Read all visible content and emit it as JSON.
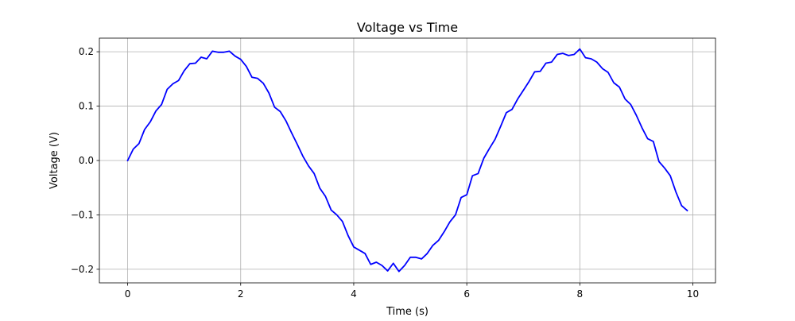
{
  "chart_data": {
    "type": "line",
    "title": "Voltage vs Time",
    "xlabel": "Time (s)",
    "ylabel": "Voltage (V)",
    "xlim": [
      -0.5,
      10.4
    ],
    "ylim": [
      -0.225,
      0.225
    ],
    "xticks": [
      0,
      2,
      4,
      6,
      8,
      10
    ],
    "xtick_labels": [
      "0",
      "2",
      "4",
      "6",
      "8",
      "10"
    ],
    "yticks": [
      -0.2,
      -0.1,
      0.0,
      0.1,
      0.2
    ],
    "ytick_labels": [
      "−0.2",
      "−0.1",
      "0.0",
      "0.1",
      "0.2"
    ],
    "grid": true,
    "series": [
      {
        "color": "#0000ff",
        "x": [
          0.0,
          0.1,
          0.2,
          0.3,
          0.4,
          0.5,
          0.6,
          0.7,
          0.8,
          0.9,
          1.0,
          1.1,
          1.2,
          1.3,
          1.4,
          1.5,
          1.6,
          1.7,
          1.8,
          1.9,
          2.0,
          2.1,
          2.2,
          2.3,
          2.4,
          2.5,
          2.6,
          2.7,
          2.8,
          2.9,
          3.0,
          3.1,
          3.2,
          3.3,
          3.4,
          3.5,
          3.6,
          3.7,
          3.8,
          3.9,
          4.0,
          4.1,
          4.2,
          4.3,
          4.4,
          4.5,
          4.6,
          4.7,
          4.8,
          4.9,
          5.0,
          5.1,
          5.2,
          5.3,
          5.4,
          5.5,
          5.6,
          5.7,
          5.8,
          5.9,
          6.0,
          6.1,
          6.2,
          6.3,
          6.4,
          6.5,
          6.6,
          6.7,
          6.8,
          6.9,
          7.0,
          7.1,
          7.2,
          7.3,
          7.4,
          7.5,
          7.6,
          7.7,
          7.8,
          7.9,
          8.0,
          8.1,
          8.2,
          8.3,
          8.4,
          8.5,
          8.6,
          8.7,
          8.8,
          8.9,
          9.0,
          9.1,
          9.2,
          9.3,
          9.4,
          9.5,
          9.6,
          9.7,
          9.8,
          9.9
        ],
        "y": [
          0.0,
          0.021,
          0.031,
          0.057,
          0.071,
          0.091,
          0.103,
          0.131,
          0.141,
          0.147,
          0.165,
          0.178,
          0.179,
          0.19,
          0.187,
          0.201,
          0.199,
          0.199,
          0.201,
          0.192,
          0.186,
          0.173,
          0.153,
          0.151,
          0.142,
          0.124,
          0.098,
          0.09,
          0.073,
          0.051,
          0.03,
          0.008,
          -0.01,
          -0.024,
          -0.051,
          -0.066,
          -0.091,
          -0.1,
          -0.112,
          -0.138,
          -0.159,
          -0.165,
          -0.171,
          -0.191,
          -0.187,
          -0.193,
          -0.203,
          -0.189,
          -0.204,
          -0.193,
          -0.178,
          -0.178,
          -0.181,
          -0.171,
          -0.156,
          -0.147,
          -0.131,
          -0.113,
          -0.1,
          -0.068,
          -0.063,
          -0.028,
          -0.024,
          0.004,
          0.022,
          0.039,
          0.063,
          0.088,
          0.094,
          0.113,
          0.129,
          0.145,
          0.163,
          0.164,
          0.179,
          0.181,
          0.195,
          0.197,
          0.193,
          0.195,
          0.205,
          0.189,
          0.187,
          0.181,
          0.169,
          0.162,
          0.143,
          0.135,
          0.113,
          0.103,
          0.083,
          0.06,
          0.04,
          0.035,
          -0.002,
          -0.014,
          -0.028,
          -0.058,
          -0.083,
          -0.092
        ]
      }
    ]
  }
}
